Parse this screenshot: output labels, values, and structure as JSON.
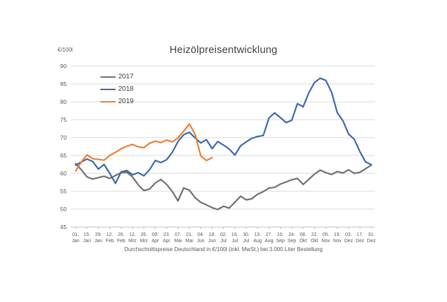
{
  "page": {
    "title": "Heizölpreisentwicklung",
    "unit_label": "€/100l",
    "footnote": "Durchschnittspreise Deutschland in €/100l (inkl. MwSt.) bei 3.000 Liter Bestellung"
  },
  "chart_data": {
    "type": "line",
    "title": "Heizölpreisentwicklung",
    "ylabel": "€/100l",
    "ylim": [
      45,
      90
    ],
    "ytick_step": 5,
    "grid": true,
    "legend_position": "top-left-inside",
    "x_note": "values are weekly samples; index 0 = 01. Jan, index 52 = 31. Dez",
    "x_ticks_day": [
      "01.",
      "15.",
      "29.",
      "12.",
      "26.",
      "12.",
      "26.",
      "09.",
      "23.",
      "07.",
      "21.",
      "04.",
      "18.",
      "02.",
      "16.",
      "30.",
      "13.",
      "27.",
      "10.",
      "24.",
      "08.",
      "22.",
      "05.",
      "19.",
      "03.",
      "17.",
      "31."
    ],
    "x_ticks_month": [
      "Jan",
      "Jan",
      "Jan",
      "Feb",
      "Feb",
      "Mrz",
      "Mrz",
      "Apr",
      "Apr",
      "Mai",
      "Mai",
      "Jun",
      "Jun",
      "Jul",
      "Jul",
      "Jul",
      "Aug",
      "Aug",
      "Sep",
      "Sep",
      "Okt",
      "Okt",
      "Nov",
      "Nov",
      "Dez",
      "Dez",
      "Dez"
    ],
    "series": [
      {
        "name": "2017",
        "color": "#6e6e6e",
        "values": [
          62.7,
          61.0,
          59.0,
          58.4,
          58.8,
          59.2,
          58.6,
          59.4,
          60.2,
          60.3,
          59.0,
          56.8,
          55.2,
          55.6,
          57.3,
          58.3,
          56.9,
          54.9,
          52.3,
          55.9,
          55.3,
          53.2,
          51.9,
          51.2,
          50.4,
          49.9,
          50.8,
          50.3,
          51.9,
          53.6,
          52.6,
          52.9,
          54.2,
          54.9,
          55.9,
          56.1,
          57.0,
          57.6,
          58.2,
          58.6,
          56.9,
          58.3,
          59.8,
          60.9,
          60.2,
          59.7,
          60.5,
          60.1,
          61.0,
          60.0,
          60.3,
          61.3,
          62.3
        ]
      },
      {
        "name": "2018",
        "color": "#3a66ae",
        "values": [
          62.3,
          63.2,
          64.0,
          63.3,
          61.2,
          62.5,
          60.0,
          57.2,
          60.4,
          60.8,
          59.6,
          60.2,
          59.3,
          61.0,
          63.6,
          63.0,
          63.8,
          65.9,
          68.9,
          70.8,
          71.5,
          69.9,
          68.5,
          69.4,
          66.9,
          68.9,
          67.9,
          66.8,
          65.1,
          67.7,
          68.8,
          69.8,
          70.3,
          70.6,
          75.5,
          76.9,
          75.6,
          74.2,
          74.8,
          79.5,
          78.6,
          82.5,
          85.4,
          86.6,
          86.0,
          82.7,
          77.0,
          74.7,
          71.0,
          69.5,
          66.0,
          63.2,
          62.4
        ]
      },
      {
        "name": "2019",
        "color": "#ed7d31",
        "values": [
          60.7,
          63.2,
          65.2,
          64.1,
          63.9,
          63.7,
          65.0,
          65.9,
          66.9,
          67.6,
          68.1,
          67.4,
          67.2,
          68.4,
          69.0,
          68.6,
          69.3,
          68.8,
          69.9,
          71.8,
          73.8,
          70.9,
          64.9,
          63.6,
          64.4
        ]
      }
    ],
    "footnote": "Durchschnittspreise Deutschland in €/100l (inkl. MwSt.) bei 3.000 Liter Bestellung"
  },
  "style": {
    "grid_color": "#d9d9d9",
    "axis_color": "#bfbfbf",
    "tick_label_color": "#595959"
  }
}
